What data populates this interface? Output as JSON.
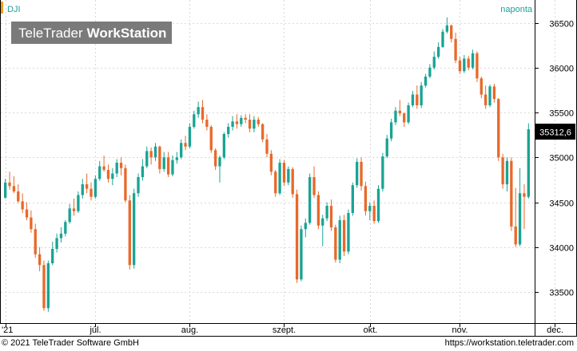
{
  "header": {
    "symbol": "DJI",
    "period": "naponta",
    "brand_light": "TeleTrader",
    "brand_bold": "WorkStation"
  },
  "footer": {
    "copyright": "© 2021 TeleTrader Software GmbH",
    "url": "https://workstation.teletrader.com"
  },
  "colors": {
    "up": "#1aa394",
    "down": "#e8692a",
    "accent": "#f0a020",
    "label_teal": "#1ba39a",
    "grid": "#d8d8d8"
  },
  "chart_data": {
    "type": "candlestick",
    "title": "DJI",
    "interval": "naponta",
    "last_value_label": "35312,6",
    "ylim": [
      33180,
      36700
    ],
    "yticks": [
      33500,
      34000,
      34500,
      35000,
      35500,
      36000,
      36500
    ],
    "xticks": [
      {
        "label": "'21",
        "index": 0
      },
      {
        "label": "júl.",
        "index": 21
      },
      {
        "label": "aug.",
        "index": 43
      },
      {
        "label": "szept.",
        "index": 65
      },
      {
        "label": "okt.",
        "index": 85
      },
      {
        "label": "nov.",
        "index": 106
      },
      {
        "label": "dec.",
        "index": 128
      }
    ],
    "candles": [
      [
        34550,
        34760,
        34540,
        34720
      ],
      [
        34720,
        34840,
        34640,
        34680
      ],
      [
        34680,
        34790,
        34600,
        34620
      ],
      [
        34620,
        34700,
        34490,
        34510
      ],
      [
        34510,
        34600,
        34380,
        34420
      ],
      [
        34420,
        34500,
        34300,
        34330
      ],
      [
        34330,
        34410,
        34160,
        34200
      ],
      [
        34200,
        34260,
        33880,
        33920
      ],
      [
        33920,
        34000,
        33730,
        33800
      ],
      [
        33800,
        33850,
        33290,
        33320
      ],
      [
        33320,
        33850,
        33280,
        33820
      ],
      [
        33820,
        34060,
        33800,
        33980
      ],
      [
        33980,
        34150,
        33940,
        34100
      ],
      [
        34100,
        34220,
        34050,
        34150
      ],
      [
        34150,
        34300,
        34120,
        34280
      ],
      [
        34280,
        34480,
        34260,
        34430
      ],
      [
        34430,
        34540,
        34350,
        34400
      ],
      [
        34400,
        34620,
        34380,
        34580
      ],
      [
        34580,
        34760,
        34540,
        34700
      ],
      [
        34700,
        34820,
        34600,
        34650
      ],
      [
        34650,
        34720,
        34520,
        34560
      ],
      [
        34560,
        34800,
        34540,
        34760
      ],
      [
        34760,
        34960,
        34740,
        34900
      ],
      [
        34900,
        35020,
        34840,
        34860
      ],
      [
        34860,
        34920,
        34720,
        34760
      ],
      [
        34760,
        34880,
        34690,
        34820
      ],
      [
        34820,
        34980,
        34780,
        34940
      ],
      [
        34940,
        35000,
        34800,
        34880
      ],
      [
        34880,
        34920,
        34500,
        34520
      ],
      [
        34520,
        34580,
        33750,
        33800
      ],
      [
        33800,
        34650,
        33760,
        34600
      ],
      [
        34600,
        34820,
        34560,
        34780
      ],
      [
        34780,
        34980,
        34740,
        34900
      ],
      [
        34900,
        35120,
        34880,
        35070
      ],
      [
        35070,
        35110,
        34920,
        35000
      ],
      [
        35000,
        35160,
        34960,
        35120
      ],
      [
        35120,
        35130,
        34820,
        34870
      ],
      [
        34870,
        35060,
        34840,
        35000
      ],
      [
        35000,
        35060,
        34780,
        34810
      ],
      [
        34810,
        35020,
        34790,
        34970
      ],
      [
        34970,
        35060,
        34930,
        35000
      ],
      [
        35000,
        35200,
        34980,
        35160
      ],
      [
        35160,
        35240,
        35080,
        35120
      ],
      [
        35120,
        35380,
        35100,
        35340
      ],
      [
        35340,
        35520,
        35320,
        35480
      ],
      [
        35480,
        35620,
        35440,
        35560
      ],
      [
        35560,
        35640,
        35380,
        35420
      ],
      [
        35420,
        35480,
        35300,
        35340
      ],
      [
        35340,
        35360,
        35050,
        35080
      ],
      [
        35080,
        35100,
        34860,
        34900
      ],
      [
        34900,
        35020,
        34720,
        35000
      ],
      [
        35000,
        35280,
        34980,
        35260
      ],
      [
        35260,
        35380,
        35220,
        35340
      ],
      [
        35340,
        35460,
        35300,
        35400
      ],
      [
        35400,
        35480,
        35320,
        35370
      ],
      [
        35370,
        35470,
        35340,
        35440
      ],
      [
        35440,
        35480,
        35380,
        35420
      ],
      [
        35420,
        35480,
        35280,
        35320
      ],
      [
        35320,
        35460,
        35280,
        35420
      ],
      [
        35420,
        35450,
        35340,
        35370
      ],
      [
        35370,
        35380,
        35170,
        35200
      ],
      [
        35200,
        35260,
        35000,
        35040
      ],
      [
        35040,
        35080,
        34800,
        34840
      ],
      [
        34840,
        34860,
        34560,
        34600
      ],
      [
        34600,
        34980,
        34580,
        34940
      ],
      [
        34940,
        34970,
        34680,
        34720
      ],
      [
        34720,
        34900,
        34690,
        34870
      ],
      [
        34870,
        34890,
        34550,
        34590
      ],
      [
        34590,
        34640,
        33600,
        33640
      ],
      [
        33640,
        34240,
        33620,
        34200
      ],
      [
        34200,
        34320,
        34110,
        34270
      ],
      [
        34270,
        34820,
        34250,
        34780
      ],
      [
        34780,
        34900,
        34550,
        34580
      ],
      [
        34580,
        34620,
        34200,
        34240
      ],
      [
        34240,
        34360,
        34010,
        34320
      ],
      [
        34320,
        34500,
        34290,
        34460
      ],
      [
        34460,
        34530,
        34180,
        34220
      ],
      [
        34220,
        34250,
        33830,
        33860
      ],
      [
        33860,
        34350,
        33820,
        34300
      ],
      [
        34300,
        34360,
        33900,
        33950
      ],
      [
        33950,
        34420,
        33920,
        34380
      ],
      [
        34380,
        34720,
        34350,
        34690
      ],
      [
        34690,
        34990,
        34660,
        34950
      ],
      [
        34950,
        35000,
        34630,
        34680
      ],
      [
        34680,
        34730,
        34350,
        34400
      ],
      [
        34400,
        34500,
        34300,
        34460
      ],
      [
        34460,
        34520,
        34260,
        34290
      ],
      [
        34290,
        34690,
        34270,
        34650
      ],
      [
        34650,
        35050,
        34620,
        35010
      ],
      [
        35010,
        35250,
        34990,
        35210
      ],
      [
        35210,
        35430,
        35180,
        35390
      ],
      [
        35390,
        35560,
        35360,
        35520
      ],
      [
        35520,
        35640,
        35460,
        35490
      ],
      [
        35490,
        35500,
        35340,
        35390
      ],
      [
        35390,
        35610,
        35370,
        35580
      ],
      [
        35580,
        35740,
        35560,
        35700
      ],
      [
        35700,
        35800,
        35540,
        35580
      ],
      [
        35580,
        35840,
        35550,
        35800
      ],
      [
        35800,
        35930,
        35780,
        35900
      ],
      [
        35900,
        36040,
        35880,
        36000
      ],
      [
        36000,
        36180,
        35980,
        36120
      ],
      [
        36120,
        36280,
        36100,
        36230
      ],
      [
        36230,
        36430,
        36220,
        36400
      ],
      [
        36400,
        36560,
        36380,
        36470
      ],
      [
        36470,
        36480,
        36280,
        36320
      ],
      [
        36320,
        36390,
        36050,
        36080
      ],
      [
        36080,
        36120,
        35930,
        35960
      ],
      [
        35960,
        36140,
        35940,
        36100
      ],
      [
        36100,
        36130,
        35970,
        36000
      ],
      [
        36000,
        36200,
        35980,
        36160
      ],
      [
        36160,
        36180,
        35840,
        35880
      ],
      [
        35880,
        35900,
        35660,
        35700
      ],
      [
        35700,
        35800,
        35540,
        35580
      ],
      [
        35580,
        35810,
        35560,
        35790
      ],
      [
        35790,
        35820,
        35610,
        35650
      ],
      [
        35650,
        35660,
        34960,
        35000
      ],
      [
        35000,
        35040,
        34650,
        34700
      ],
      [
        34700,
        35000,
        34620,
        34960
      ],
      [
        34960,
        35000,
        34180,
        34230
      ],
      [
        34230,
        34660,
        34000,
        34030
      ],
      [
        34030,
        34880,
        34010,
        34600
      ],
      [
        34600,
        34700,
        34200,
        34560
      ],
      [
        34560,
        35380,
        34540,
        35312.6
      ]
    ]
  }
}
